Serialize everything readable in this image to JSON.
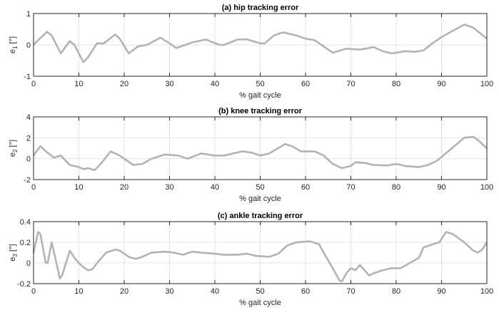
{
  "chart_data": [
    {
      "type": "line",
      "title": "(a) hip tracking error",
      "xlabel": "% gait cycle",
      "ylabel": "e",
      "ylabel_sub": "1",
      "ylabel_unit": " [°]",
      "xlim": [
        0,
        100
      ],
      "ylim": [
        -1,
        1
      ],
      "xticks": [
        0,
        10,
        20,
        30,
        40,
        50,
        60,
        70,
        80,
        90,
        100
      ],
      "yticks": [
        -1,
        0,
        1
      ],
      "ytick_labels": [
        "-1",
        "0",
        "1"
      ],
      "grid": true,
      "line_color": "#b3b3b3",
      "x": [
        0,
        1,
        3,
        4,
        6,
        8,
        9,
        11,
        12,
        14,
        15.5,
        18,
        19,
        21,
        23,
        25,
        28,
        30,
        31.5,
        35,
        38,
        41,
        42,
        45,
        47,
        50,
        51,
        53,
        55,
        58,
        60,
        62,
        63,
        66,
        69,
        72,
        75,
        77,
        79,
        82,
        84,
        86,
        88,
        90,
        95,
        97,
        100
      ],
      "y": [
        0,
        0.15,
        0.42,
        0.3,
        -0.27,
        0.12,
        0,
        -0.55,
        -0.4,
        0.05,
        0.05,
        0.33,
        0.2,
        -0.27,
        -0.05,
        0,
        0.23,
        0.05,
        -0.1,
        0.08,
        0.17,
        0,
        0,
        0.17,
        0.18,
        0.05,
        0.05,
        0.3,
        0.4,
        0.3,
        0.2,
        0.15,
        0.05,
        -0.25,
        -0.12,
        -0.15,
        -0.07,
        -0.2,
        -0.27,
        -0.2,
        -0.22,
        -0.18,
        0.05,
        0.25,
        0.65,
        0.55,
        0.2
      ]
    },
    {
      "type": "line",
      "title": "(b) knee tracking error",
      "xlabel": "% gait cycle",
      "ylabel": "e",
      "ylabel_sub": "2",
      "ylabel_unit": " [°]",
      "xlim": [
        0,
        100
      ],
      "ylim": [
        -2,
        4
      ],
      "xticks": [
        0,
        10,
        20,
        30,
        40,
        50,
        60,
        70,
        80,
        90,
        100
      ],
      "yticks": [
        -2,
        0,
        2,
        4
      ],
      "ytick_labels": [
        "-2",
        "0",
        "2",
        "4"
      ],
      "grid": true,
      "line_color": "#b3b3b3",
      "x": [
        0,
        1.5,
        3,
        4.5,
        6,
        8,
        10,
        11,
        12,
        13.5,
        15,
        17,
        19,
        22,
        24,
        26,
        29,
        32,
        34,
        37,
        40,
        42,
        46,
        48,
        50,
        52,
        55.5,
        57,
        59,
        62,
        64,
        66,
        68,
        70,
        71,
        73,
        75,
        78,
        80,
        82,
        85,
        87,
        89,
        92,
        95,
        97,
        98,
        100
      ],
      "y": [
        0.3,
        1.2,
        0.6,
        0.1,
        0.3,
        -0.6,
        -0.8,
        -1.0,
        -0.9,
        -1.1,
        -0.4,
        0.7,
        0.3,
        -0.6,
        -0.5,
        0,
        0.4,
        0.3,
        0,
        0.5,
        0.3,
        0.3,
        0.7,
        0.6,
        0.3,
        0.5,
        1.4,
        1.2,
        0.7,
        0.7,
        0.3,
        -0.5,
        -0.9,
        -0.7,
        -0.35,
        -0.4,
        -0.6,
        -0.65,
        -0.5,
        -0.7,
        -0.8,
        -0.6,
        -0.2,
        0.9,
        2.0,
        2.1,
        1.8,
        1.0
      ]
    },
    {
      "type": "line",
      "title": "(c) ankle tracking error",
      "xlabel": "% gait cycle",
      "ylabel": "e",
      "ylabel_sub": "3",
      "ylabel_unit": " [°]",
      "xlim": [
        0,
        100
      ],
      "ylim": [
        -0.2,
        0.4
      ],
      "xticks": [
        0,
        10,
        20,
        30,
        40,
        50,
        60,
        70,
        80,
        90,
        100
      ],
      "yticks": [
        -0.2,
        0,
        0.2,
        0.4
      ],
      "ytick_labels": [
        "-0.2",
        "0",
        "0.2",
        "0.4"
      ],
      "grid": true,
      "line_color": "#b3b3b3",
      "x": [
        0,
        1,
        1.5,
        2.7,
        3.1,
        4,
        4.8,
        5.8,
        6.3,
        8,
        9,
        10,
        11,
        12,
        13,
        14,
        16,
        18,
        19,
        21,
        22.5,
        24,
        26,
        29,
        31,
        33,
        35,
        37,
        40,
        42,
        45,
        47,
        49,
        52,
        54,
        56,
        58,
        61,
        63,
        64,
        66,
        67.5,
        68,
        69,
        70,
        71,
        72,
        74,
        75,
        77,
        79,
        81,
        83,
        85,
        86,
        88,
        89.5,
        91,
        92.5,
        95,
        97,
        98,
        99,
        100
      ],
      "y": [
        0.1,
        0.3,
        0.28,
        0,
        0,
        0.2,
        0.05,
        -0.15,
        -0.12,
        0.12,
        0.05,
        0,
        -0.04,
        -0.07,
        -0.06,
        0,
        0.1,
        0.13,
        0.12,
        0.06,
        0.04,
        0.06,
        0.1,
        0.11,
        0.1,
        0.08,
        0.11,
        0.1,
        0.09,
        0.08,
        0.08,
        0.09,
        0.07,
        0.06,
        0.09,
        0.17,
        0.2,
        0.21,
        0.18,
        0.1,
        -0.05,
        -0.17,
        -0.18,
        -0.1,
        -0.05,
        -0.07,
        -0.02,
        -0.12,
        -0.1,
        -0.07,
        -0.05,
        -0.05,
        0,
        0.05,
        0.15,
        0.18,
        0.2,
        0.3,
        0.28,
        0.2,
        0.12,
        0.1,
        0.13,
        0.2
      ]
    }
  ]
}
